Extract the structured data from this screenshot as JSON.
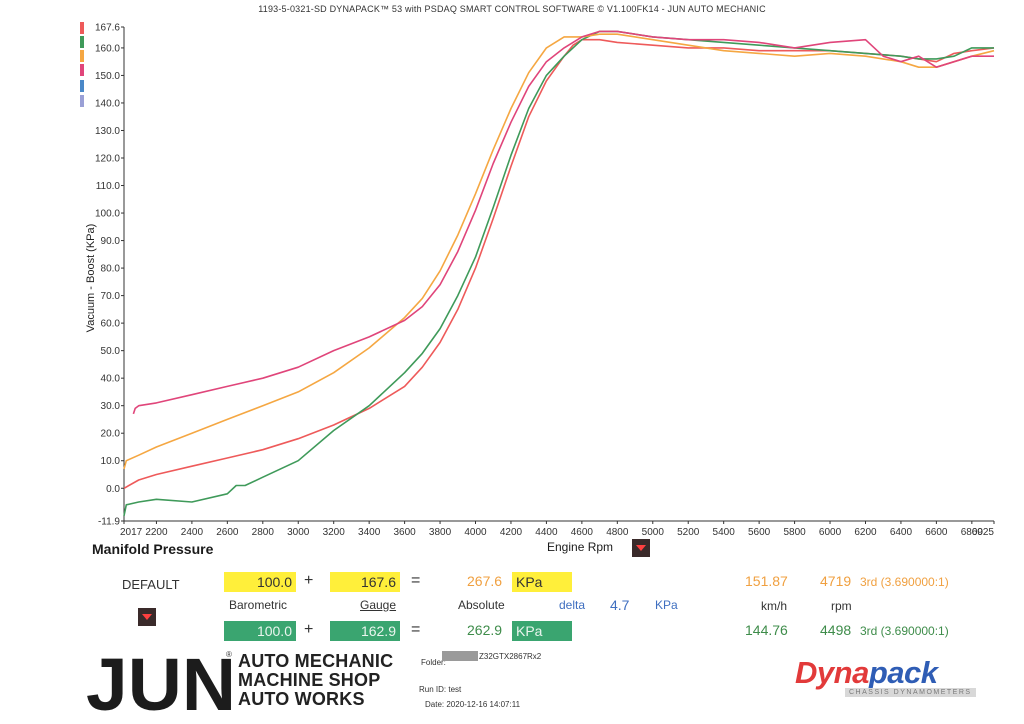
{
  "header": {
    "title": "1193-5-0321-SD DYNAPACK™ 53 with PSDAQ SMART CONTROL SOFTWARE © V1.100FK14 - JUN AUTO MECHANIC"
  },
  "colors": {
    "red": "#ee5a5a",
    "green": "#3f9a5a",
    "orange": "#f5a742",
    "pink": "#e0457a",
    "blue": "#4a88c8",
    "lavender": "#9aa0d6"
  },
  "legend_swatches": [
    "red",
    "green",
    "orange",
    "pink",
    "blue",
    "lavender"
  ],
  "chart_data": {
    "type": "line",
    "title": "Manifold Pressure",
    "xlabel": "Engine Rpm",
    "ylabel": "Vacuum - Boost (KPa)",
    "xlim": [
      2017,
      6925
    ],
    "ylim": [
      -11.9,
      167.6
    ],
    "x_ticks": [
      "2017",
      "2200",
      "2400",
      "2600",
      "2800",
      "3000",
      "3200",
      "3400",
      "3600",
      "3800",
      "4000",
      "4200",
      "4400",
      "4600",
      "4800",
      "5000",
      "5200",
      "5400",
      "5600",
      "5800",
      "6000",
      "6200",
      "6400",
      "6600",
      "6800",
      "6925"
    ],
    "y_ticks": [
      "167.6",
      "160.0",
      "150.0",
      "140.0",
      "130.0",
      "120.0",
      "110.0",
      "100.0",
      "90.0",
      "80.0",
      "70.0",
      "60.0",
      "50.0",
      "40.0",
      "30.0",
      "20.0",
      "10.0",
      "0.0",
      "-11.9"
    ],
    "series": [
      {
        "color": "red",
        "x": [
          2017,
          2100,
          2200,
          2400,
          2600,
          2800,
          3000,
          3200,
          3400,
          3600,
          3700,
          3800,
          3900,
          4000,
          4100,
          4200,
          4300,
          4400,
          4500,
          4550,
          4600,
          4700,
          4800,
          5000,
          5200,
          5400,
          5600,
          5800,
          6000,
          6200,
          6400,
          6500,
          6600,
          6700,
          6800,
          6925
        ],
        "y": [
          0,
          3,
          5,
          8,
          11,
          14,
          18,
          23,
          29,
          37,
          44,
          53,
          65,
          80,
          98,
          117,
          135,
          148,
          157,
          161,
          163,
          163,
          162,
          161,
          160,
          160,
          159,
          159,
          159,
          158,
          157,
          156,
          155,
          158,
          159,
          160
        ]
      },
      {
        "color": "green",
        "x": [
          2017,
          2030,
          2100,
          2200,
          2400,
          2600,
          2650,
          2700,
          2800,
          3000,
          3200,
          3400,
          3600,
          3700,
          3800,
          3900,
          4000,
          4100,
          4200,
          4300,
          4400,
          4500,
          4550,
          4600,
          4700,
          4800,
          5000,
          5200,
          5400,
          5600,
          5800,
          6000,
          6200,
          6400,
          6500,
          6600,
          6700,
          6800,
          6925
        ],
        "y": [
          -10,
          -6,
          -5,
          -4,
          -5,
          -2,
          1,
          1,
          4,
          10,
          21,
          30,
          42,
          49,
          58,
          70,
          84,
          102,
          121,
          138,
          150,
          157,
          160,
          163,
          166,
          166,
          164,
          163,
          162,
          161,
          160,
          159,
          158,
          157,
          156,
          156,
          157,
          160,
          160
        ]
      },
      {
        "color": "orange",
        "x": [
          2017,
          2030,
          2100,
          2200,
          2400,
          2600,
          2800,
          3000,
          3200,
          3400,
          3600,
          3700,
          3800,
          3900,
          4000,
          4100,
          4200,
          4300,
          4400,
          4500,
          4600,
          4700,
          4800,
          5000,
          5200,
          5400,
          5600,
          5800,
          6000,
          6200,
          6400,
          6500,
          6600,
          6700,
          6800,
          6925
        ],
        "y": [
          7,
          10,
          12,
          15,
          20,
          25,
          30,
          35,
          42,
          51,
          62,
          69,
          79,
          92,
          107,
          123,
          138,
          151,
          160,
          164,
          164,
          165,
          165,
          163,
          161,
          159,
          158,
          157,
          158,
          157,
          155,
          153,
          153,
          155,
          157,
          159
        ]
      },
      {
        "color": "pink",
        "x": [
          2070,
          2080,
          2100,
          2200,
          2400,
          2600,
          2800,
          3000,
          3200,
          3400,
          3600,
          3700,
          3800,
          3900,
          4000,
          4100,
          4200,
          4300,
          4400,
          4500,
          4600,
          4700,
          4800,
          5000,
          5200,
          5400,
          5600,
          5800,
          6000,
          6200,
          6300,
          6400,
          6500,
          6600,
          6700,
          6800,
          6925
        ],
        "y": [
          27,
          29,
          30,
          31,
          34,
          37,
          40,
          44,
          50,
          55,
          61,
          66,
          74,
          86,
          101,
          118,
          133,
          146,
          155,
          160,
          164,
          166,
          166,
          164,
          163,
          163,
          162,
          160,
          162,
          163,
          157,
          155,
          157,
          153,
          155,
          157,
          157
        ]
      }
    ]
  },
  "labels": {
    "section": "Manifold Pressure",
    "xaxis": "Engine Rpm",
    "preset": "DEFAULT",
    "barometric": "Barometric",
    "gauge": "Gauge",
    "absolute": "Absolute",
    "delta": "delta",
    "delta_value": "4.7",
    "delta_unit": "KPa",
    "kmh": "km/h",
    "rpm": "rpm"
  },
  "row1": {
    "baro": "100.0",
    "plus": "+",
    "gauge": "167.6",
    "eq": "=",
    "abs": "267.6",
    "unit": "KPa",
    "speed": "151.87",
    "rpm": "4719",
    "gear": "3rd (3.690000:1)"
  },
  "row2": {
    "baro": "100.0",
    "plus": "+",
    "gauge": "162.9",
    "eq": "=",
    "abs": "262.9",
    "unit": "KPa",
    "speed": "144.76",
    "rpm": "4498",
    "gear": "3rd (3.690000:1)"
  },
  "logo": {
    "letters": "JUN",
    "line1": "AUTO MECHANIC",
    "line2": "MACHINE SHOP",
    "line3": "AUTO WORKS",
    "registered": "®"
  },
  "meta": {
    "folder_label": "Folder:",
    "folder_value": "Z32GTX2867Rx2",
    "run_id": "Run ID: test",
    "date": "Date: 2020-12-16 14:07:11"
  },
  "brand": {
    "name_a": "Dyna",
    "name_b": "pack",
    "sub": "CHASSIS DYNAMOMETERS"
  }
}
